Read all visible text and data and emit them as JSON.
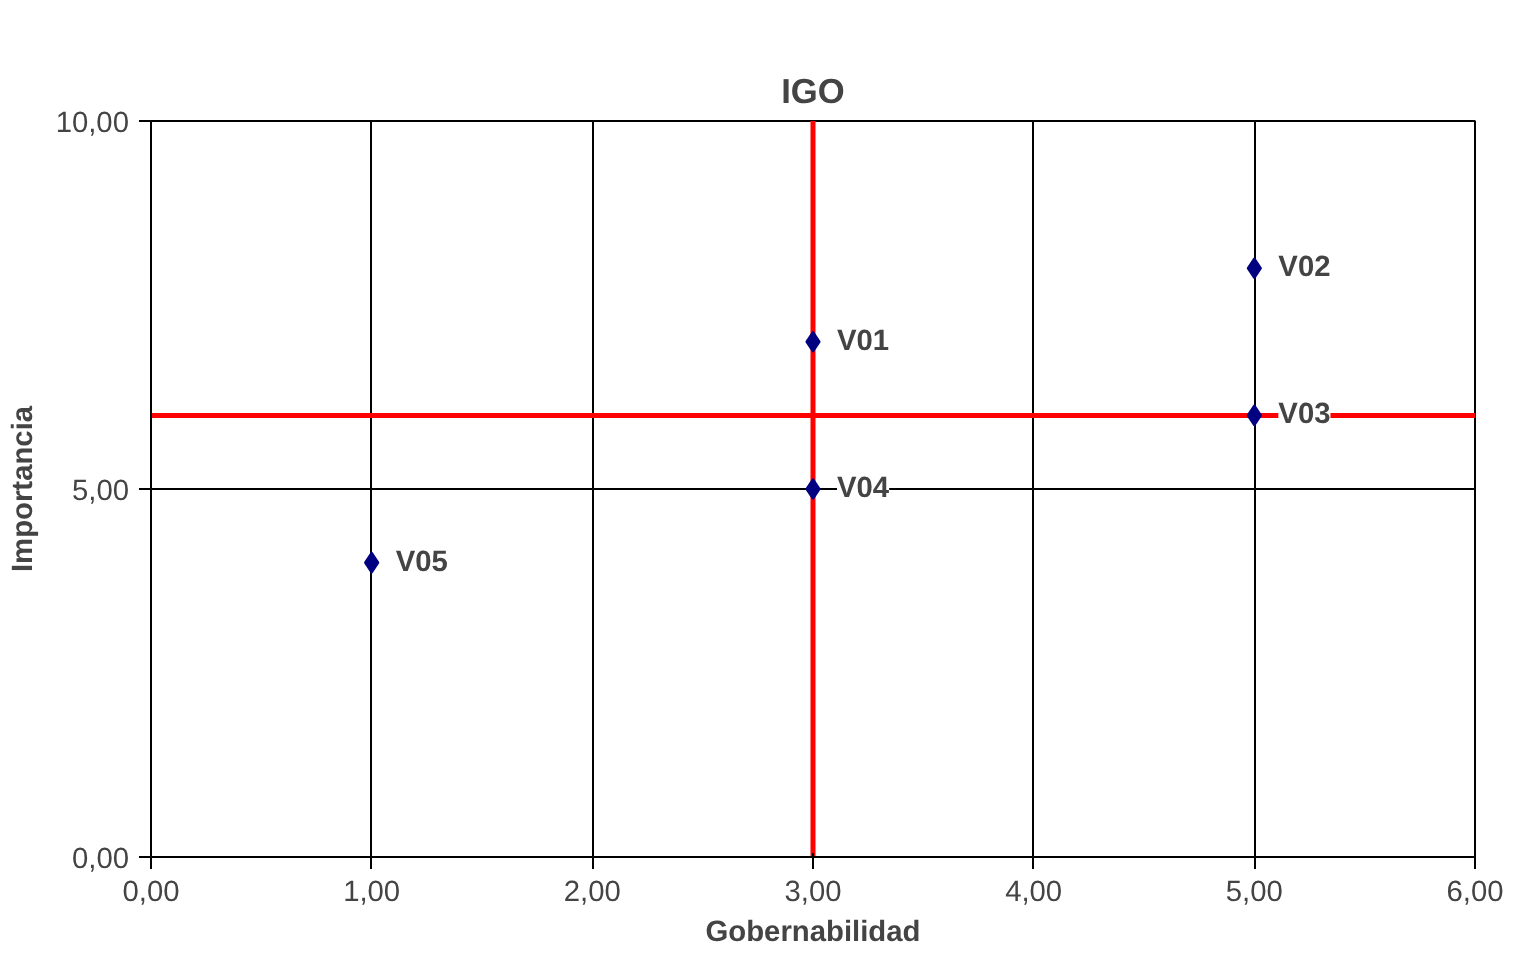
{
  "chart_data": {
    "type": "scatter",
    "title": "IGO",
    "xlabel": "Gobernabilidad",
    "ylabel": "Importancia",
    "x": [
      3,
      5,
      5,
      3,
      1
    ],
    "series": [
      {
        "color": "#000080",
        "values": [
          7,
          8,
          6,
          5,
          4
        ]
      }
    ],
    "marker": "diamond",
    "grid": true,
    "xlim": [
      0,
      6
    ],
    "ylim": [
      0,
      10
    ],
    "xticks": [
      {
        "value": 0,
        "label": "0,00"
      },
      {
        "value": 1,
        "label": "1,00"
      },
      {
        "value": 2,
        "label": "2,00"
      },
      {
        "value": 3,
        "label": "3,00"
      },
      {
        "value": 4,
        "label": "4,00"
      },
      {
        "value": 5,
        "label": "5,00"
      },
      {
        "value": 6,
        "label": "6,00"
      }
    ],
    "yticks": [
      {
        "value": 0,
        "label": "0,00"
      },
      {
        "value": 5,
        "label": "5,00"
      },
      {
        "value": 10,
        "label": "10,00"
      }
    ],
    "ref_lines": [
      {
        "axis": "x",
        "value": 3,
        "color": "#ff0000"
      },
      {
        "axis": "y",
        "value": 6,
        "color": "#ff0000"
      }
    ],
    "annotations": [
      {
        "text": "V01",
        "x": 3,
        "y": 7
      },
      {
        "text": "V02",
        "x": 5,
        "y": 8
      },
      {
        "text": "V03",
        "x": 5,
        "y": 6
      },
      {
        "text": "V04",
        "x": 3,
        "y": 5
      },
      {
        "text": "V05",
        "x": 1,
        "y": 4
      }
    ]
  }
}
